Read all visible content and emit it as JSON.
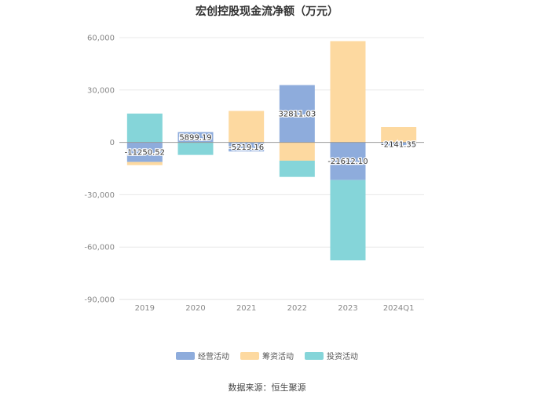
{
  "chart_data": {
    "type": "bar",
    "stacked": true,
    "title": "宏创控股现金流净额（万元）",
    "categories": [
      "2019",
      "2020",
      "2021",
      "2022",
      "2023",
      "2024Q1"
    ],
    "ylim": [
      -90000,
      60000
    ],
    "yticks": [
      60000,
      30000,
      0,
      -30000,
      -60000,
      -90000
    ],
    "ytick_labels": [
      "60,000",
      "30,000",
      "0",
      "-30,000",
      "-60,000",
      "-90,000"
    ],
    "grid": true,
    "legend_position": "bottom",
    "series": [
      {
        "name": "经营活动",
        "color": "#8eacdc",
        "values": [
          -11250.52,
          5899.19,
          -5219.16,
          32811.03,
          -21612.1,
          -2141.35
        ],
        "labels": [
          "-11250.52",
          "5899.19",
          "-5219.16",
          "32811.03",
          "-21612.10",
          "-2141.35"
        ]
      },
      {
        "name": "筹资活动",
        "color": "#fdd9a0",
        "values": [
          -1800,
          0,
          18000,
          -10500,
          58000,
          8800
        ]
      },
      {
        "name": "投资活动",
        "color": "#85d5d9",
        "values": [
          16500,
          -7200,
          0,
          -9300,
          -46000,
          0
        ]
      }
    ]
  },
  "source": "数据来源：恒生聚源"
}
